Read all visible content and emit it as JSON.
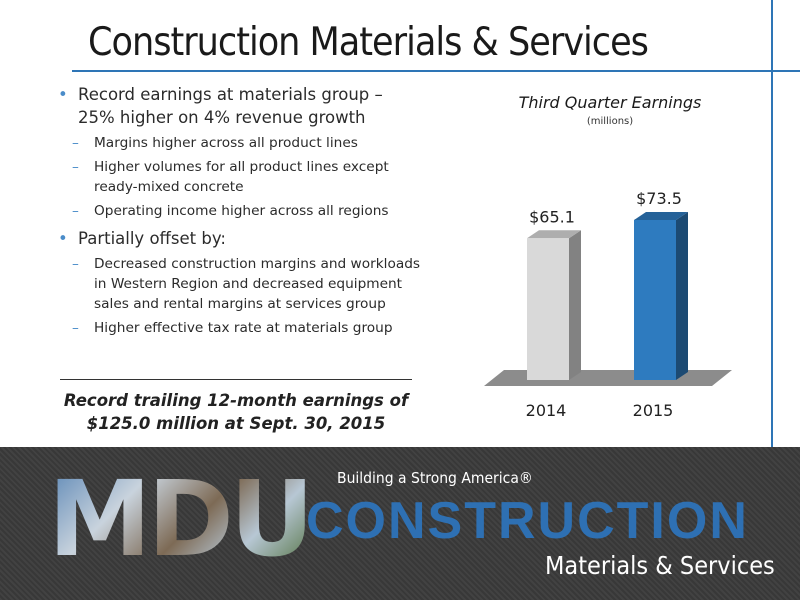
{
  "slide": {
    "title": "Construction Materials & Services",
    "bullets": [
      {
        "text": "Record earnings at materials group – 25% higher on 4% revenue growth",
        "subs": [
          "Margins higher across all product lines",
          "Higher volumes for all product lines except ready-mixed concrete",
          "Operating income higher across all regions"
        ]
      },
      {
        "text": "Partially offset by:",
        "subs": [
          "Decreased construction margins and workloads in Western Region and decreased equipment sales and rental margins at services group",
          "Higher effective tax rate at materials group"
        ]
      }
    ],
    "callout": "Record trailing 12-month earnings of $125.0 million at Sept. 30, 2015"
  },
  "chart_data": {
    "type": "bar",
    "title": "Third Quarter Earnings",
    "subtitle": "(millions)",
    "categories": [
      "2014",
      "2015"
    ],
    "values": [
      65.1,
      73.5
    ],
    "data_labels": [
      "$65.1",
      "$73.5"
    ],
    "colors": [
      "#d9d9d9",
      "#2e7bbf"
    ],
    "ylim": [
      0,
      80
    ],
    "grid": false
  },
  "footer": {
    "logo": "MDU",
    "tagline": "Building a Strong America®",
    "division": "CONSTRUCTION",
    "subdivision": "Materials & Services"
  },
  "colors": {
    "accent": "#2e75b6",
    "footer_bg": "#3a3a3a"
  }
}
